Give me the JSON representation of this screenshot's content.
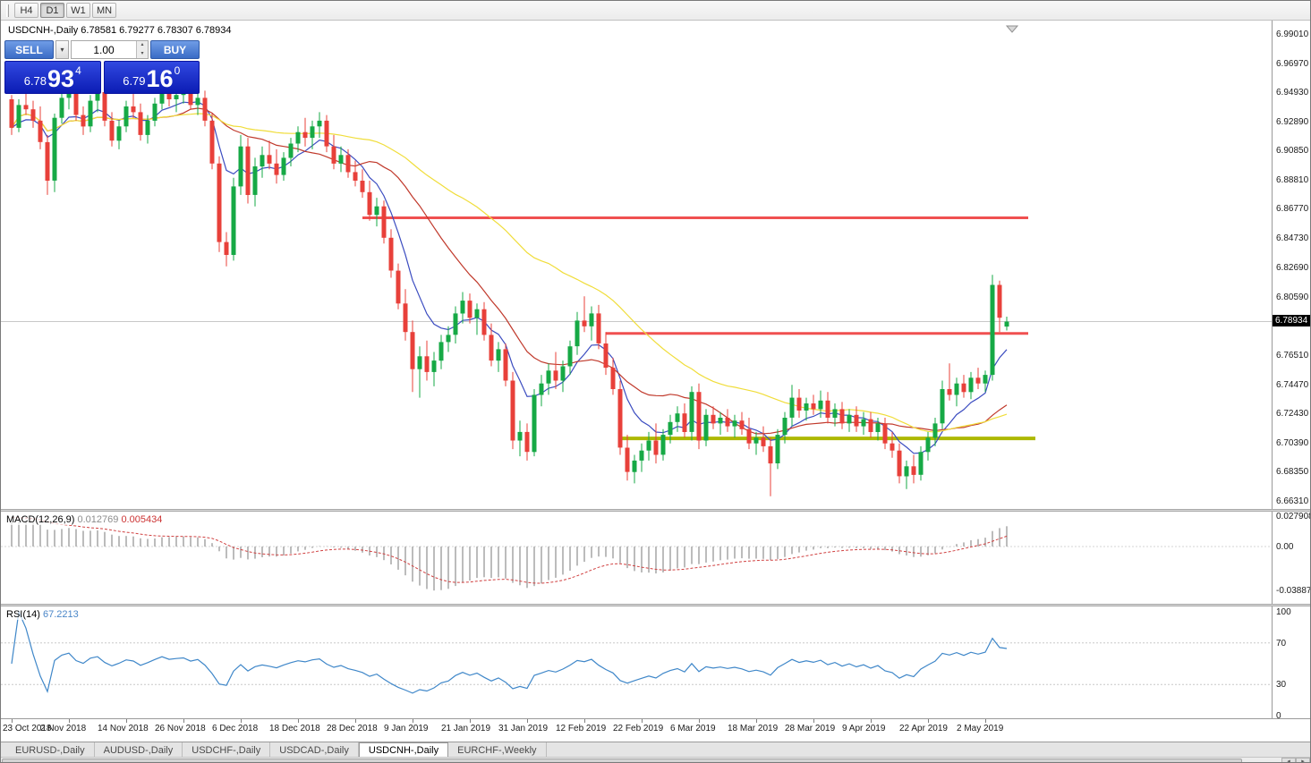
{
  "toolbar": {
    "timeframes": [
      "H4",
      "D1",
      "W1",
      "MN"
    ],
    "active": "D1"
  },
  "chart_header": {
    "symbol_label": "USDCNH-,Daily",
    "ohlc_label": "6.78581 6.79277 6.78307 6.78934"
  },
  "trade_panel": {
    "sell_label": "SELL",
    "buy_label": "BUY",
    "volume_value": "1.00",
    "sell_price": {
      "prefix": "6.78",
      "big": "93",
      "sup": "4"
    },
    "buy_price": {
      "prefix": "6.79",
      "big": "16",
      "sup": "0"
    }
  },
  "tabs": [
    {
      "label": "EURUSD-,Daily",
      "active": false
    },
    {
      "label": "AUDUSD-,Daily",
      "active": false
    },
    {
      "label": "USDCHF-,Daily",
      "active": false
    },
    {
      "label": "USDCAD-,Daily",
      "active": false
    },
    {
      "label": "USDCNH-,Daily",
      "active": true
    },
    {
      "label": "EURCHF-,Weekly",
      "active": false
    }
  ],
  "chart_data": {
    "type": "candlestick",
    "title": "USDCNH-,Daily",
    "colors": {
      "up": "#16a945",
      "down": "#e8403a"
    },
    "price_axis": {
      "max": 6.9901,
      "min": 6.6631,
      "current": "6.78934",
      "ticks": [
        "6.99010",
        "6.96970",
        "6.94930",
        "6.92890",
        "6.90850",
        "6.88810",
        "6.86770",
        "6.84730",
        "6.82690",
        "6.80590",
        "6.76510",
        "6.74470",
        "6.72430",
        "6.70390",
        "6.68350",
        "6.66310"
      ]
    },
    "hlines": [
      {
        "price": 6.862,
        "i1": 49,
        "i2": 142,
        "color": "#f05050",
        "w": 3
      },
      {
        "price": 6.781,
        "i1": 83,
        "i2": 142,
        "color": "#f05050",
        "w": 3
      },
      {
        "price": 6.7075,
        "i1": 85,
        "i2": 143,
        "color": "#adb804",
        "w": 4
      }
    ],
    "moving_averages": [
      {
        "period": 8,
        "method": "ema",
        "color": "#3b4cc0"
      },
      {
        "period": 20,
        "method": "sma",
        "color": "#c0392b"
      },
      {
        "period": 45,
        "method": "sma",
        "color": "#f0dd3a"
      }
    ],
    "date_axis": [
      {
        "text": "23 Oct 2018",
        "i": 0
      },
      {
        "text": "2 Nov 2018",
        "i": 8
      },
      {
        "text": "14 Nov 2018",
        "i": 16
      },
      {
        "text": "26 Nov 2018",
        "i": 24
      },
      {
        "text": "6 Dec 2018",
        "i": 32
      },
      {
        "text": "18 Dec 2018",
        "i": 40
      },
      {
        "text": "28 Dec 2018",
        "i": 48
      },
      {
        "text": "9 Jan 2019",
        "i": 56
      },
      {
        "text": "21 Jan 2019",
        "i": 64
      },
      {
        "text": "31 Jan 2019",
        "i": 72
      },
      {
        "text": "12 Feb 2019",
        "i": 80
      },
      {
        "text": "22 Feb 2019",
        "i": 88
      },
      {
        "text": "6 Mar 2019",
        "i": 96
      },
      {
        "text": "18 Mar 2019",
        "i": 104
      },
      {
        "text": "28 Mar 2019",
        "i": 112
      },
      {
        "text": "9 Apr 2019",
        "i": 120
      },
      {
        "text": "22 Apr 2019",
        "i": 128
      },
      {
        "text": "2 May 2019",
        "i": 136
      }
    ],
    "macd": {
      "name": "MACD(12,26,9)",
      "value": "0.012769",
      "signal_value": "0.005434",
      "ticks": [
        "0.027908",
        "0.00",
        "-0.038871"
      ],
      "histogram_color": "#ababab",
      "signal_color": "#d04040"
    },
    "rsi": {
      "name": "RSI(14)",
      "value": "67.2213",
      "ticks": [
        "100",
        "70",
        "30",
        "0"
      ],
      "levels": [
        70,
        30
      ],
      "color": "#3f87c9"
    },
    "candles": [
      [
        6.945,
        6.948,
        6.92,
        6.925
      ],
      [
        6.925,
        6.945,
        6.922,
        6.941
      ],
      [
        6.941,
        6.952,
        6.934,
        6.938
      ],
      [
        6.938,
        6.944,
        6.925,
        6.93
      ],
      [
        6.93,
        6.94,
        6.91,
        6.915
      ],
      [
        6.915,
        6.92,
        6.878,
        6.888
      ],
      [
        6.888,
        6.935,
        6.88,
        6.932
      ],
      [
        6.932,
        6.95,
        6.928,
        6.946
      ],
      [
        6.946,
        6.958,
        6.938,
        6.952
      ],
      [
        6.952,
        6.957,
        6.93,
        6.934
      ],
      [
        6.934,
        6.94,
        6.92,
        6.926
      ],
      [
        6.926,
        6.948,
        6.922,
        6.944
      ],
      [
        6.944,
        6.956,
        6.936,
        6.95
      ],
      [
        6.95,
        6.954,
        6.926,
        6.93
      ],
      [
        6.93,
        6.936,
        6.912,
        6.916
      ],
      [
        6.916,
        6.93,
        6.91,
        6.926
      ],
      [
        6.926,
        6.944,
        6.922,
        6.94
      ],
      [
        6.94,
        6.95,
        6.932,
        6.936
      ],
      [
        6.936,
        6.942,
        6.916,
        6.92
      ],
      [
        6.92,
        6.934,
        6.914,
        6.93
      ],
      [
        6.93,
        6.946,
        6.926,
        6.942
      ],
      [
        6.942,
        6.957,
        6.938,
        6.953
      ],
      [
        6.953,
        6.958,
        6.94,
        6.945
      ],
      [
        6.945,
        6.952,
        6.936,
        6.948
      ],
      [
        6.948,
        6.955,
        6.942,
        6.95
      ],
      [
        6.95,
        6.954,
        6.938,
        6.941
      ],
      [
        6.941,
        6.95,
        6.934,
        6.946
      ],
      [
        6.946,
        6.951,
        6.926,
        6.93
      ],
      [
        6.93,
        6.935,
        6.896,
        6.9
      ],
      [
        6.9,
        6.905,
        6.838,
        6.845
      ],
      [
        6.845,
        6.852,
        6.828,
        6.836
      ],
      [
        6.836,
        6.89,
        6.832,
        6.884
      ],
      [
        6.884,
        6.92,
        6.878,
        6.912
      ],
      [
        6.912,
        6.918,
        6.872,
        6.878
      ],
      [
        6.878,
        6.904,
        6.87,
        6.898
      ],
      [
        6.898,
        6.912,
        6.89,
        6.906
      ],
      [
        6.906,
        6.916,
        6.896,
        6.9
      ],
      [
        6.9,
        6.91,
        6.886,
        6.892
      ],
      [
        6.892,
        6.908,
        6.888,
        6.904
      ],
      [
        6.904,
        6.918,
        6.898,
        6.914
      ],
      [
        6.914,
        6.926,
        6.908,
        6.922
      ],
      [
        6.922,
        6.932,
        6.912,
        6.918
      ],
      [
        6.918,
        6.93,
        6.91,
        6.926
      ],
      [
        6.926,
        6.936,
        6.918,
        6.93
      ],
      [
        6.93,
        6.934,
        6.908,
        6.912
      ],
      [
        6.912,
        6.92,
        6.896,
        6.9
      ],
      [
        6.9,
        6.912,
        6.894,
        6.906
      ],
      [
        6.906,
        6.91,
        6.89,
        6.894
      ],
      [
        6.894,
        6.902,
        6.884,
        6.888
      ],
      [
        6.888,
        6.896,
        6.876,
        6.88
      ],
      [
        6.88,
        6.888,
        6.86,
        6.864
      ],
      [
        6.864,
        6.876,
        6.856,
        6.87
      ],
      [
        6.87,
        6.874,
        6.844,
        6.848
      ],
      [
        6.848,
        6.854,
        6.82,
        6.825
      ],
      [
        6.825,
        6.83,
        6.798,
        6.802
      ],
      [
        6.802,
        6.812,
        6.776,
        6.782
      ],
      [
        6.782,
        6.79,
        6.74,
        6.756
      ],
      [
        6.756,
        6.772,
        6.736,
        6.765
      ],
      [
        6.765,
        6.776,
        6.748,
        6.754
      ],
      [
        6.754,
        6.768,
        6.744,
        6.762
      ],
      [
        6.762,
        6.78,
        6.756,
        6.775
      ],
      [
        6.775,
        6.786,
        6.768,
        6.78
      ],
      [
        6.78,
        6.8,
        6.774,
        6.795
      ],
      [
        6.795,
        6.81,
        6.788,
        6.804
      ],
      [
        6.804,
        6.809,
        6.788,
        6.792
      ],
      [
        6.792,
        6.802,
        6.78,
        6.798
      ],
      [
        6.798,
        6.803,
        6.776,
        6.78
      ],
      [
        6.78,
        6.788,
        6.758,
        6.762
      ],
      [
        6.762,
        6.775,
        6.754,
        6.77
      ],
      [
        6.77,
        6.774,
        6.744,
        6.748
      ],
      [
        6.748,
        6.754,
        6.7,
        6.706
      ],
      [
        6.706,
        6.72,
        6.695,
        6.712
      ],
      [
        6.712,
        6.718,
        6.692,
        6.698
      ],
      [
        6.698,
        6.742,
        6.695,
        6.738
      ],
      [
        6.738,
        6.752,
        6.73,
        6.746
      ],
      [
        6.746,
        6.76,
        6.738,
        6.755
      ],
      [
        6.755,
        6.768,
        6.742,
        6.748
      ],
      [
        6.748,
        6.762,
        6.74,
        6.758
      ],
      [
        6.758,
        6.776,
        6.752,
        6.772
      ],
      [
        6.772,
        6.796,
        6.766,
        6.79
      ],
      [
        6.79,
        6.807,
        6.782,
        6.786
      ],
      [
        6.786,
        6.8,
        6.776,
        6.795
      ],
      [
        6.795,
        6.801,
        6.77,
        6.774
      ],
      [
        6.774,
        6.782,
        6.752,
        6.757
      ],
      [
        6.757,
        6.764,
        6.738,
        6.742
      ],
      [
        6.742,
        6.748,
        6.696,
        6.701
      ],
      [
        6.701,
        6.71,
        6.678,
        6.684
      ],
      [
        6.684,
        6.696,
        6.676,
        6.692
      ],
      [
        6.692,
        6.704,
        6.684,
        6.699
      ],
      [
        6.699,
        6.712,
        6.692,
        6.706
      ],
      [
        6.706,
        6.718,
        6.69,
        6.696
      ],
      [
        6.696,
        6.714,
        6.692,
        6.71
      ],
      [
        6.71,
        6.724,
        6.704,
        6.719
      ],
      [
        6.719,
        6.73,
        6.712,
        6.725
      ],
      [
        6.725,
        6.732,
        6.708,
        6.712
      ],
      [
        6.712,
        6.744,
        6.706,
        6.74
      ],
      [
        6.74,
        6.746,
        6.7,
        6.706
      ],
      [
        6.706,
        6.728,
        6.702,
        6.724
      ],
      [
        6.724,
        6.73,
        6.714,
        6.718
      ],
      [
        6.718,
        6.726,
        6.71,
        6.722
      ],
      [
        6.722,
        6.728,
        6.712,
        6.716
      ],
      [
        6.716,
        6.724,
        6.708,
        6.72
      ],
      [
        6.72,
        6.726,
        6.71,
        6.714
      ],
      [
        6.714,
        6.722,
        6.7,
        6.704
      ],
      [
        6.704,
        6.712,
        6.696,
        6.708
      ],
      [
        6.708,
        6.716,
        6.698,
        6.702
      ],
      [
        6.702,
        6.708,
        6.667,
        6.69
      ],
      [
        6.69,
        6.714,
        6.686,
        6.71
      ],
      [
        6.71,
        6.726,
        6.704,
        6.722
      ],
      [
        6.722,
        6.745,
        6.716,
        6.736
      ],
      [
        6.736,
        6.742,
        6.722,
        6.727
      ],
      [
        6.727,
        6.736,
        6.72,
        6.732
      ],
      [
        6.732,
        6.738,
        6.724,
        6.728
      ],
      [
        6.728,
        6.741,
        6.722,
        6.734
      ],
      [
        6.734,
        6.74,
        6.718,
        6.722
      ],
      [
        6.722,
        6.732,
        6.716,
        6.728
      ],
      [
        6.728,
        6.733,
        6.714,
        6.718
      ],
      [
        6.718,
        6.728,
        6.712,
        6.724
      ],
      [
        6.724,
        6.73,
        6.712,
        6.716
      ],
      [
        6.716,
        6.726,
        6.71,
        6.721
      ],
      [
        6.721,
        6.726,
        6.708,
        6.712
      ],
      [
        6.712,
        6.722,
        6.706,
        6.718
      ],
      [
        6.718,
        6.722,
        6.7,
        6.704
      ],
      [
        6.704,
        6.712,
        6.694,
        6.699
      ],
      [
        6.699,
        6.704,
        6.676,
        6.681
      ],
      [
        6.681,
        6.692,
        6.672,
        6.688
      ],
      [
        6.688,
        6.696,
        6.676,
        6.682
      ],
      [
        6.682,
        6.702,
        6.678,
        6.698
      ],
      [
        6.698,
        6.712,
        6.692,
        6.708
      ],
      [
        6.708,
        6.722,
        6.702,
        6.718
      ],
      [
        6.718,
        6.748,
        6.714,
        6.742
      ],
      [
        6.742,
        6.76,
        6.734,
        6.738
      ],
      [
        6.738,
        6.75,
        6.73,
        6.746
      ],
      [
        6.746,
        6.752,
        6.736,
        6.74
      ],
      [
        6.74,
        6.754,
        6.735,
        6.75
      ],
      [
        6.75,
        6.757,
        6.742,
        6.746
      ],
      [
        6.746,
        6.755,
        6.74,
        6.752
      ],
      [
        6.752,
        6.822,
        6.748,
        6.815
      ],
      [
        6.815,
        6.818,
        6.782,
        6.792
      ],
      [
        6.78581,
        6.79277,
        6.78307,
        6.78934
      ]
    ]
  }
}
